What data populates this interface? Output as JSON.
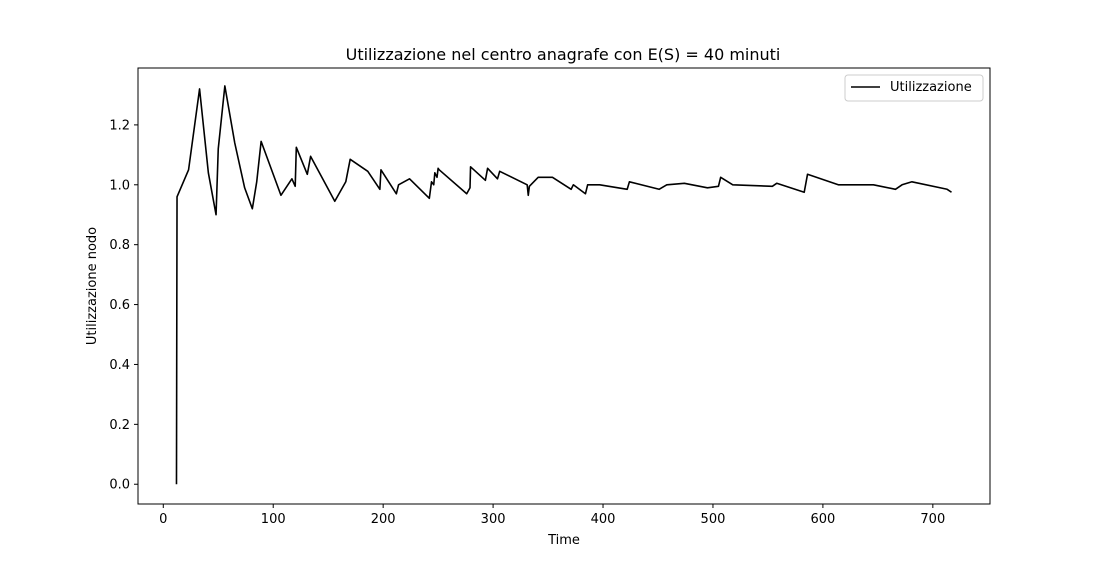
{
  "chart_data": {
    "type": "line",
    "title": "Utilizzazione nel centro anagrafe con E(S) = 40 minuti",
    "xlabel": "Time",
    "ylabel": "Utilizzazione nodo",
    "xlim": [
      -23,
      752
    ],
    "ylim": [
      -0.066,
      1.39
    ],
    "xticks": [
      0,
      100,
      200,
      300,
      400,
      500,
      600,
      700
    ],
    "yticks": [
      0.0,
      0.2,
      0.4,
      0.6,
      0.8,
      1.0,
      1.2
    ],
    "legend": "top-right",
    "grid": false,
    "series": [
      {
        "name": "Utilizzazione",
        "color": "#000000",
        "x": [
          12,
          12.5,
          23,
          33,
          41,
          48,
          50,
          56,
          65,
          74,
          81,
          85,
          89,
          107,
          117,
          120,
          121,
          131,
          134,
          156,
          166,
          170,
          186,
          197,
          198,
          212,
          214,
          224,
          242,
          244,
          246,
          247,
          249,
          250,
          251,
          276,
          279,
          279.5,
          293,
          295,
          304,
          306,
          331,
          332,
          333,
          341,
          354,
          371,
          373,
          384,
          386,
          397,
          422,
          424,
          451,
          458,
          474,
          495,
          505,
          507,
          518,
          554,
          558,
          583,
          586,
          614,
          634,
          646,
          666,
          672,
          681,
          713,
          717
        ],
        "y": [
          0.0,
          0.96,
          1.05,
          1.32,
          1.04,
          0.9,
          1.12,
          1.33,
          1.14,
          0.99,
          0.92,
          1.01,
          1.145,
          0.965,
          1.02,
          0.995,
          1.125,
          1.035,
          1.095,
          0.945,
          1.01,
          1.085,
          1.045,
          0.985,
          1.05,
          0.97,
          1.0,
          1.02,
          0.955,
          1.01,
          1.0,
          1.04,
          1.025,
          1.055,
          1.05,
          0.97,
          0.99,
          1.06,
          1.015,
          1.055,
          1.02,
          1.045,
          1.0,
          0.965,
          0.995,
          1.025,
          1.025,
          0.985,
          1.0,
          0.97,
          1.0,
          1.0,
          0.985,
          1.01,
          0.985,
          1.0,
          1.005,
          0.99,
          0.995,
          1.025,
          1.0,
          0.995,
          1.005,
          0.975,
          1.035,
          1.0,
          1.0,
          1.0,
          0.985,
          1.0,
          1.01,
          0.985,
          0.975
        ]
      }
    ]
  }
}
